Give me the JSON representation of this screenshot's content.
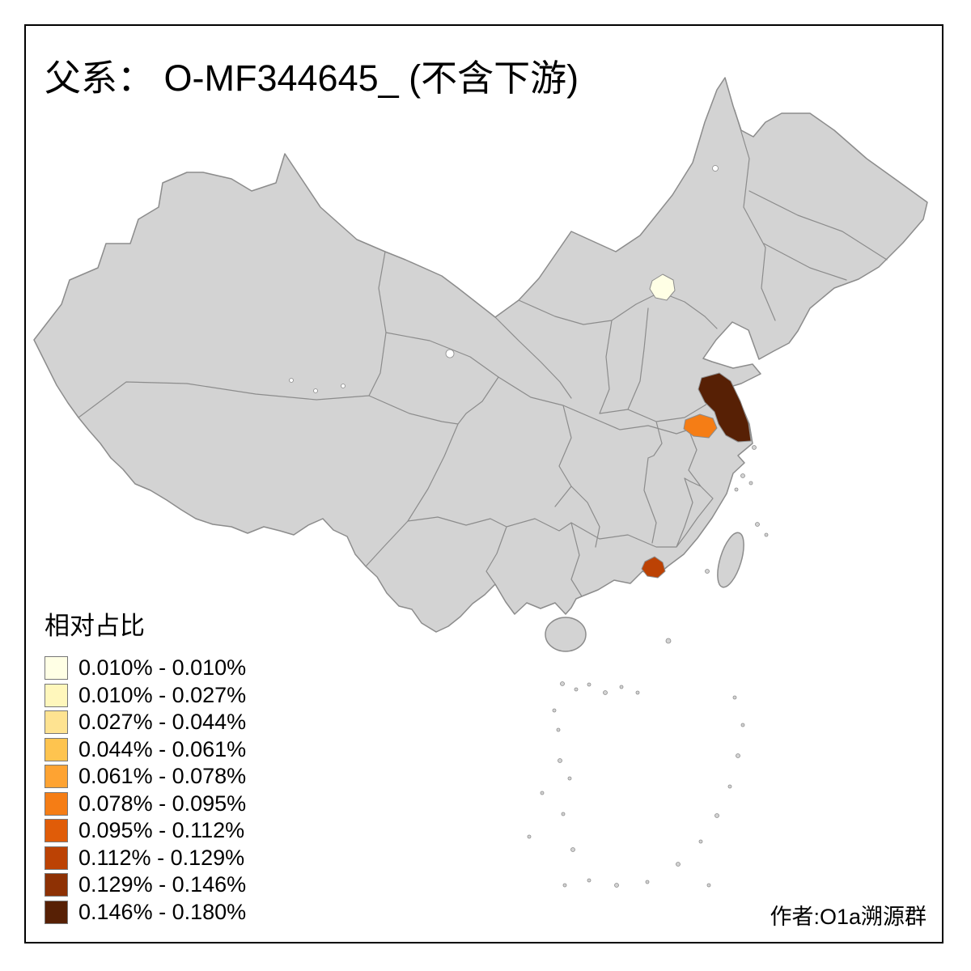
{
  "page": {
    "background": "#FFFFFF",
    "frame_border_color": "#000000"
  },
  "title": {
    "text": "父系： O-MF344645_ (不含下游)"
  },
  "legend": {
    "title": "相对占比",
    "items": [
      {
        "label": "0.010% - 0.010%",
        "color": "#FFFFE5"
      },
      {
        "label": "0.010% - 0.027%",
        "color": "#FFF7BC"
      },
      {
        "label": "0.027% - 0.044%",
        "color": "#FEE391"
      },
      {
        "label": "0.044% - 0.061%",
        "color": "#FEC44F"
      },
      {
        "label": "0.061% - 0.078%",
        "color": "#FEA332"
      },
      {
        "label": "0.078% - 0.095%",
        "color": "#F57D15"
      },
      {
        "label": "0.095% - 0.112%",
        "color": "#E05C08"
      },
      {
        "label": "0.112% - 0.129%",
        "color": "#BC4204"
      },
      {
        "label": "0.129% - 0.146%",
        "color": "#8E3104"
      },
      {
        "label": "0.146% - 0.180%",
        "color": "#572005"
      }
    ]
  },
  "author": {
    "text": "作者:O1a溯源群"
  },
  "map": {
    "land_fill": "#D3D3D3",
    "border_color": "#8C8C8C",
    "lake_fill": "#FFFFFF",
    "highlights": [
      {
        "id": "region_1",
        "position": "north, small area near capital region",
        "color": "#FFFFE5",
        "legend_bin_label": "0.010% - 0.010%"
      },
      {
        "id": "region_2",
        "position": "east-central inland blob",
        "color": "#F57D15",
        "legend_bin_label": "0.078% - 0.095%"
      },
      {
        "id": "region_3",
        "position": "southern coast delta blob",
        "color": "#BC4204",
        "legend_bin_label": "0.112% - 0.129%"
      },
      {
        "id": "region_4",
        "position": "east coastal province, large dark area",
        "color": "#572005",
        "legend_bin_label": "0.146% - 0.180%"
      }
    ]
  },
  "chart_data": {
    "type": "choropleth_map",
    "title": "父系： O-MF344645_ (不含下游)",
    "legend_title": "相对占比",
    "bins": [
      {
        "range": "0.010% - 0.010%",
        "color": "#FFFFE5"
      },
      {
        "range": "0.010% - 0.027%",
        "color": "#FFF7BC"
      },
      {
        "range": "0.027% - 0.044%",
        "color": "#FEE391"
      },
      {
        "range": "0.044% - 0.061%",
        "color": "#FEC44F"
      },
      {
        "range": "0.061% - 0.078%",
        "color": "#FEA332"
      },
      {
        "range": "0.078% - 0.095%",
        "color": "#F57D15"
      },
      {
        "range": "0.095% - 0.112%",
        "color": "#E05C08"
      },
      {
        "range": "0.112% - 0.129%",
        "color": "#BC4204"
      },
      {
        "range": "0.129% - 0.146%",
        "color": "#8E3104"
      },
      {
        "range": "0.146% - 0.180%",
        "color": "#572005"
      }
    ],
    "colored_regions": 4,
    "uncolored_fill": "#D3D3D3",
    "annotation": "作者:O1a溯源群"
  }
}
